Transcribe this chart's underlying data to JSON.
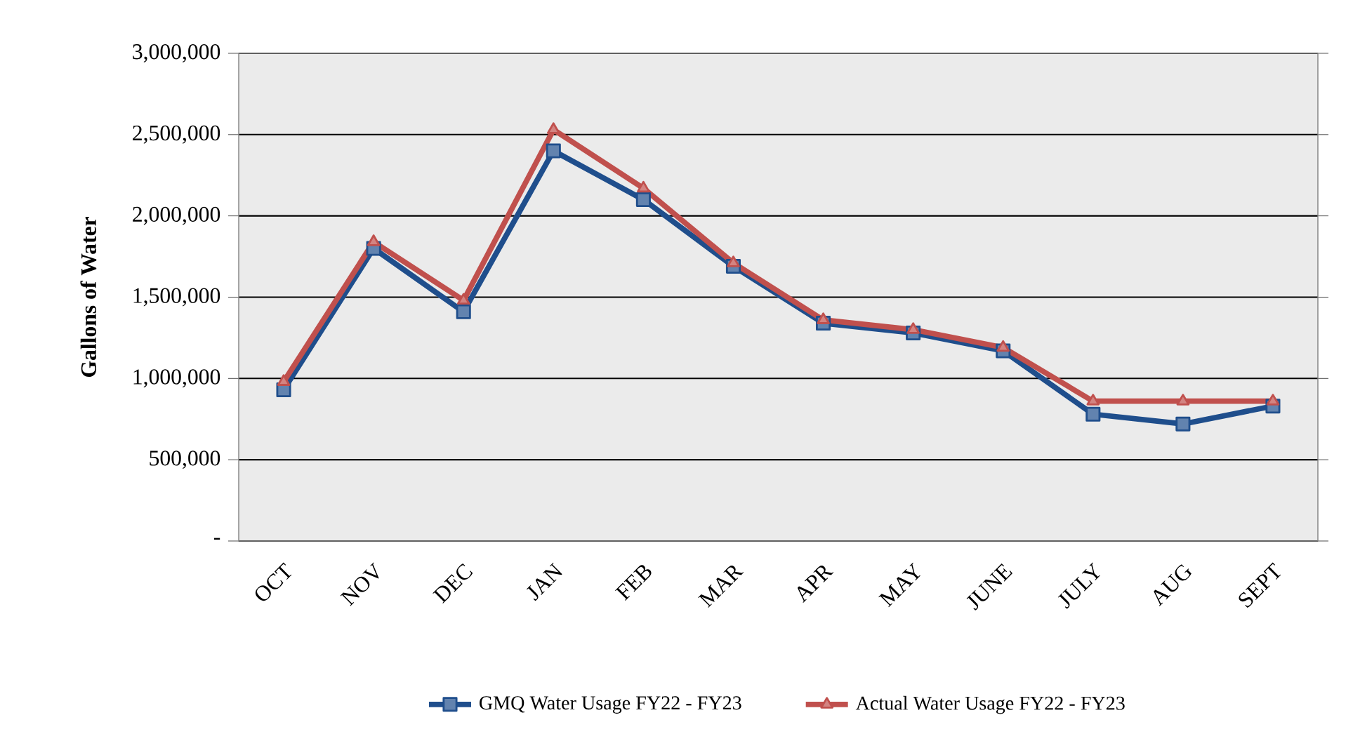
{
  "chart_data": {
    "type": "line",
    "ylabel": "Gallons of Water",
    "categories": [
      "OCT",
      "NOV",
      "DEC",
      "JAN",
      "FEB",
      "MAR",
      "APR",
      "MAY",
      "JUNE",
      "JULY",
      "AUG",
      "SEPT"
    ],
    "series": [
      {
        "name": "GMQ Water Usage FY22 - FY23",
        "color": "#1f4e8c",
        "marker": "square",
        "values": [
          930000,
          1800000,
          1410000,
          2400000,
          2100000,
          1690000,
          1340000,
          1280000,
          1170000,
          780000,
          720000,
          830000
        ]
      },
      {
        "name": "Actual Water Usage FY22 - FY23",
        "color": "#c0504d",
        "marker": "triangle",
        "values": [
          980000,
          1840000,
          1480000,
          2530000,
          2170000,
          1710000,
          1360000,
          1300000,
          1190000,
          860000,
          860000,
          860000
        ]
      }
    ],
    "ylim": [
      0,
      3000000
    ],
    "yticks": [
      {
        "value": 0,
        "label": "-"
      },
      {
        "value": 500000,
        "label": "500,000"
      },
      {
        "value": 1000000,
        "label": "1,000,000"
      },
      {
        "value": 1500000,
        "label": "1,500,000"
      },
      {
        "value": 2000000,
        "label": "2,000,000"
      },
      {
        "value": 2500000,
        "label": "2,500,000"
      },
      {
        "value": 3000000,
        "label": "3,000,000"
      }
    ],
    "grid": "y",
    "legend": "bottom",
    "line_style": "solid"
  }
}
